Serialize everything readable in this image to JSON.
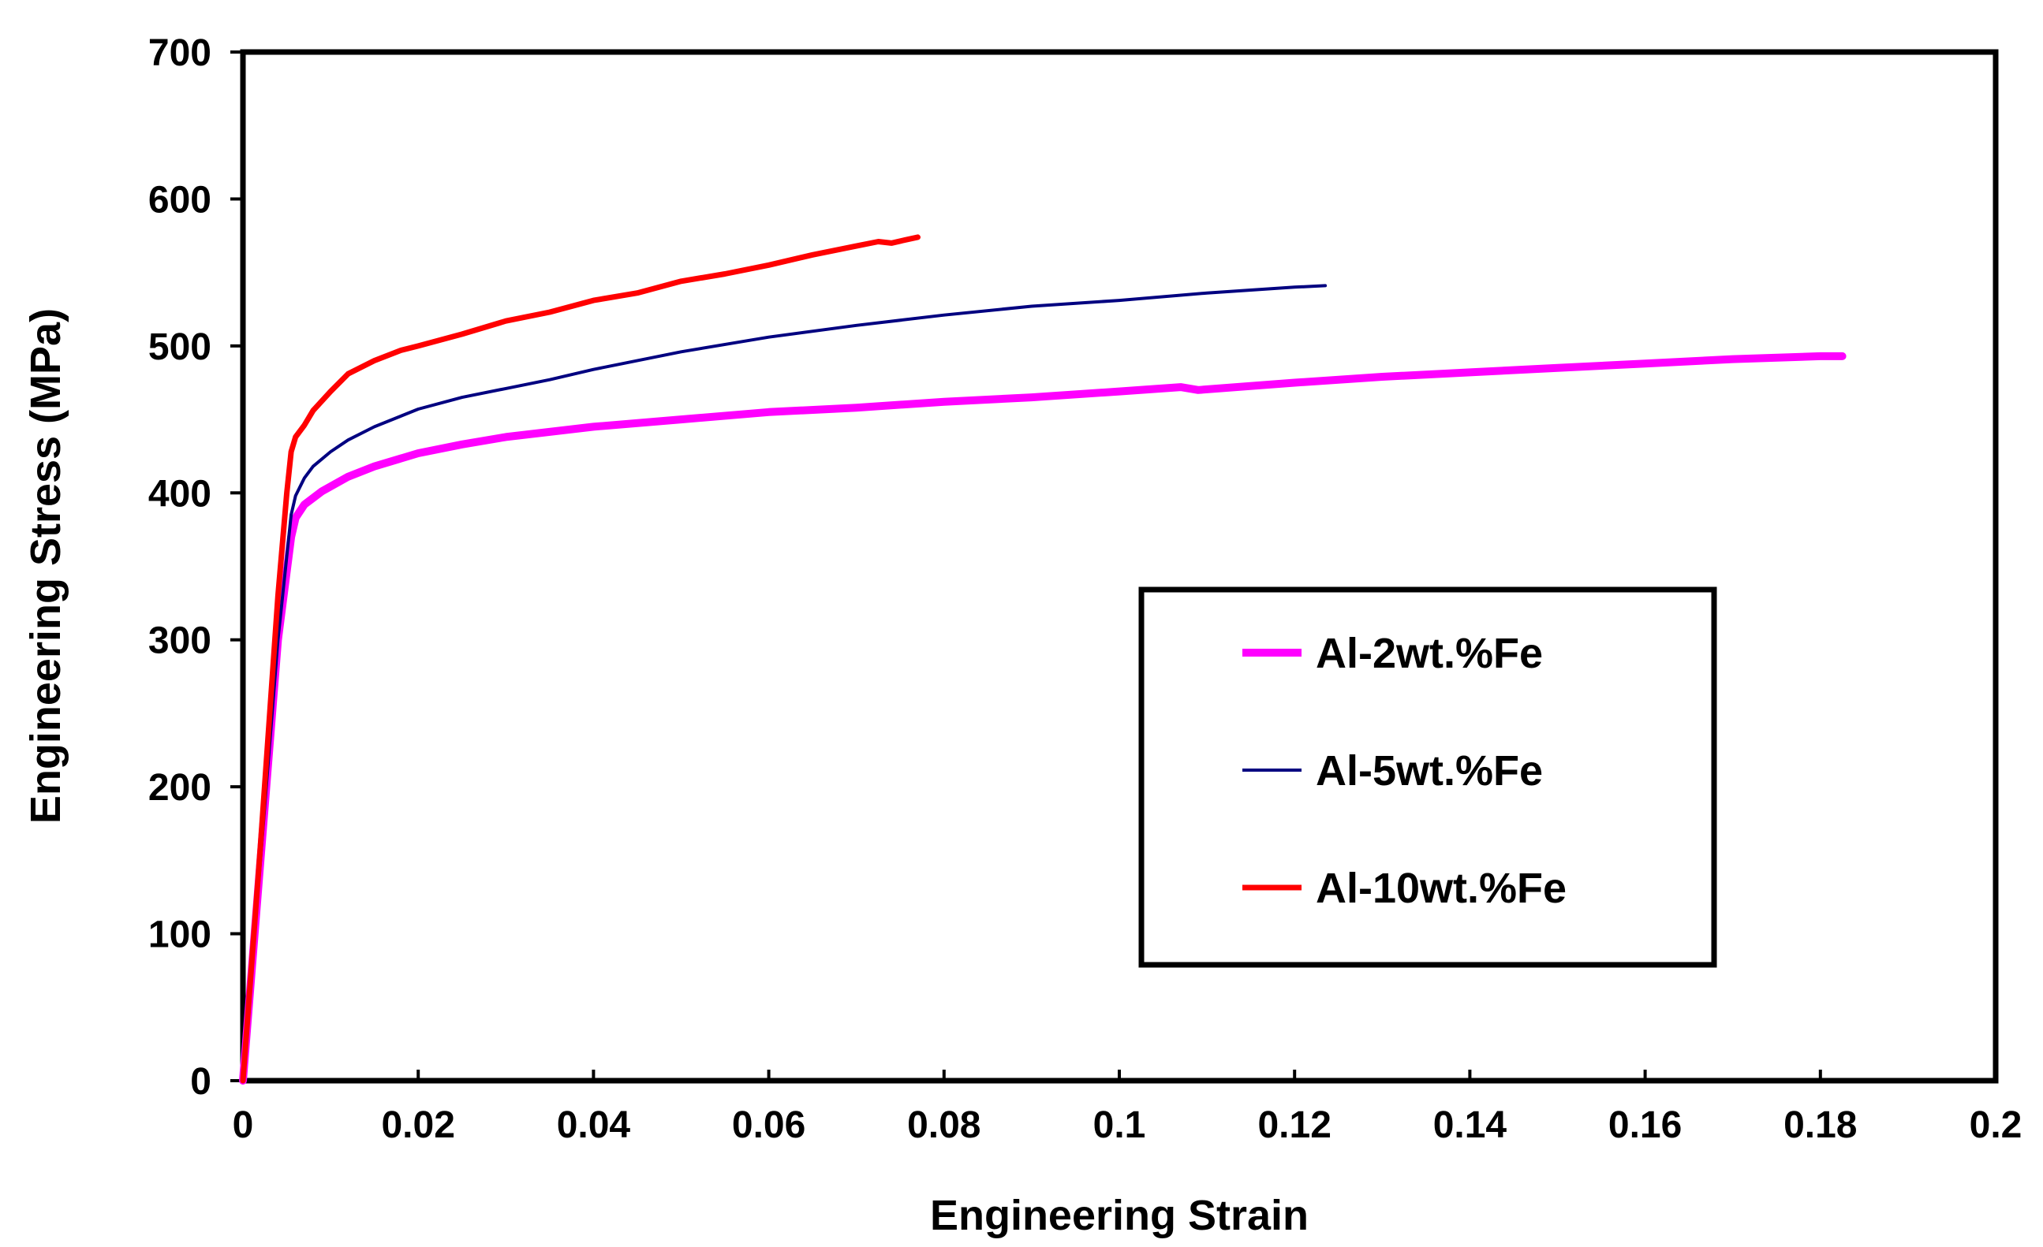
{
  "chart_data": {
    "type": "line",
    "title": "",
    "xlabel": "Engineering Strain",
    "ylabel": "Engineering Stress (MPa)",
    "xlim": [
      0,
      0.2
    ],
    "ylim": [
      0,
      700
    ],
    "xticks": [
      0,
      0.02,
      0.04,
      0.06,
      0.08,
      0.1,
      0.12,
      0.14,
      0.16,
      0.18,
      0.2
    ],
    "xtick_labels": [
      "0",
      "0.02",
      "0.04",
      "0.06",
      "0.08",
      "0.1",
      "0.12",
      "0.14",
      "0.16",
      "0.18",
      "0.2"
    ],
    "yticks": [
      0,
      100,
      200,
      300,
      400,
      500,
      600,
      700
    ],
    "ytick_labels": [
      "0",
      "100",
      "200",
      "300",
      "400",
      "500",
      "600",
      "700"
    ],
    "grid": false,
    "legend_position": "lower-right",
    "series": [
      {
        "name": "Al-2wt.%Fe",
        "color": "#ff00ff",
        "x": [
          0,
          0.002,
          0.004,
          0.0055,
          0.006,
          0.007,
          0.009,
          0.012,
          0.015,
          0.02,
          0.025,
          0.03,
          0.04,
          0.05,
          0.06,
          0.07,
          0.08,
          0.09,
          0.1,
          0.107,
          0.109,
          0.12,
          0.13,
          0.14,
          0.15,
          0.16,
          0.17,
          0.18,
          0.1825
        ],
        "y": [
          0,
          150,
          300,
          370,
          383,
          392,
          401,
          411,
          418,
          427,
          433,
          438,
          445,
          450,
          455,
          458,
          462,
          465,
          469,
          472,
          470,
          475,
          479,
          482,
          485,
          488,
          491,
          493,
          493
        ]
      },
      {
        "name": "Al-5wt.%Fe",
        "color": "#000080",
        "x": [
          0,
          0.002,
          0.004,
          0.0055,
          0.006,
          0.007,
          0.008,
          0.01,
          0.012,
          0.015,
          0.02,
          0.025,
          0.03,
          0.035,
          0.04,
          0.05,
          0.06,
          0.07,
          0.08,
          0.09,
          0.1,
          0.11,
          0.12,
          0.1235
        ],
        "y": [
          0,
          150,
          300,
          385,
          398,
          410,
          418,
          428,
          436,
          445,
          457,
          465,
          471,
          477,
          484,
          496,
          506,
          514,
          521,
          527,
          531,
          536,
          540,
          541
        ]
      },
      {
        "name": "Al-10wt.%Fe",
        "color": "#ff0000",
        "x": [
          0,
          0.002,
          0.004,
          0.005,
          0.0055,
          0.006,
          0.007,
          0.008,
          0.01,
          0.012,
          0.015,
          0.018,
          0.02,
          0.025,
          0.03,
          0.035,
          0.04,
          0.045,
          0.05,
          0.055,
          0.06,
          0.065,
          0.07,
          0.0725,
          0.074,
          0.0755,
          0.077
        ],
        "y": [
          0,
          160,
          330,
          400,
          428,
          438,
          446,
          456,
          469,
          481,
          490,
          497,
          500,
          508,
          517,
          523,
          531,
          536,
          544,
          549,
          555,
          562,
          568,
          571,
          570,
          572,
          574
        ]
      }
    ]
  }
}
